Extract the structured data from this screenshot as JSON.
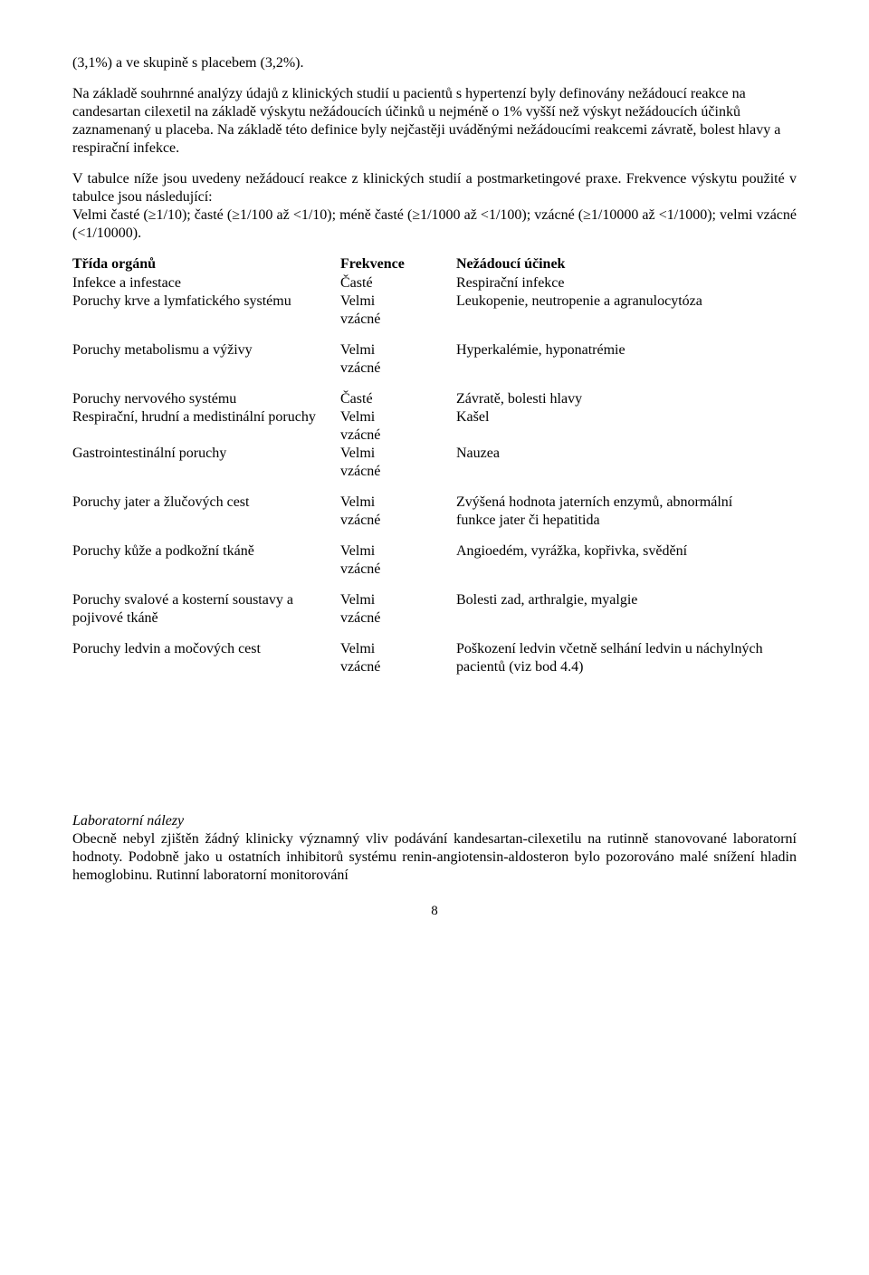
{
  "intro_fragment": "(3,1%) a ve skupině s placebem (3,2%).",
  "para1": "Na základě souhrnné analýzy údajů z klinických studií u pacientů s hypertenzí byly definovány nežádoucí reakce na candesartan cilexetil na základě výskytu nežádoucích účinků u nejméně o 1% vyšší než výskyt nežádoucích účinků zaznamenaný u placeba. Na základě této definice byly nejčastěji uváděnými nežádoucími reakcemi závratě, bolest hlavy a respirační infekce.",
  "para2": "V tabulce níže jsou uvedeny nežádoucí reakce z klinických studií a postmarketingové praxe. Frekvence výskytu použité v tabulce jsou následující:",
  "para2b": "Velmi časté (≥1/10); časté (≥1/100 až <1/10); méně časté (≥1/1000 až <1/100); vzácné (≥1/10000 až <1/1000); velmi vzácné (<1/10000).",
  "table": {
    "header": {
      "c1": "Třída orgánů",
      "c2": "Frekvence",
      "c3": "Nežádoucí účinek"
    },
    "rows": [
      {
        "c1": "Infekce a infestace",
        "c2": "Časté",
        "c3": "Respirační infekce",
        "gap": false
      },
      {
        "c1": "Poruchy krve a lymfatického systému",
        "c2": "Velmi vzácné",
        "c3": "Leukopenie, neutropenie a agranulocytóza",
        "gap": false
      },
      {
        "c1": "Poruchy metabolismu a výživy",
        "c2": "Velmi vzácné",
        "c3": "Hyperkalémie, hyponatrémie",
        "gap": true
      },
      {
        "c1": "Poruchy nervového systému",
        "c2": "Časté",
        "c3": "Závratě, bolesti hlavy",
        "gap": true
      },
      {
        "c1": "Respirační, hrudní a medistinální poruchy",
        "c2": "Velmi vzácné",
        "c3": "Kašel",
        "gap": false
      },
      {
        "c1": "Gastrointestinální poruchy",
        "c2": "Velmi vzácné",
        "c3": "Nauzea",
        "gap": false
      },
      {
        "c1": "Poruchy jater a žlučových cest",
        "c2": "Velmi vzácné",
        "c3": "Zvýšená hodnota jaterních enzymů, abnormální\nfunkce jater či hepatitida",
        "gap": true
      },
      {
        "c1": "Poruchy kůže a podkožní tkáně",
        "c2": "Velmi vzácné",
        "c3": "Angioedém, vyrážka, kopřivka, svědění",
        "gap": true
      },
      {
        "c1": "Poruchy svalové a kosterní soustavy a pojivové tkáně",
        "c2": "Velmi vzácné",
        "c3": "Bolesti zad, arthralgie, myalgie",
        "gap": true
      },
      {
        "c1": "Poruchy ledvin a močových cest",
        "c2": "Velmi vzácné",
        "c3": "Poškození ledvin včetně selhání ledvin u náchylných pacientů (viz bod 4.4)",
        "gap": true
      }
    ]
  },
  "lab_heading": "Laboratorní nálezy",
  "lab_para": "Obecně nebyl zjištěn žádný klinicky významný vliv podávání kandesartan-cilexetilu na rutinně stanovované laboratorní hodnoty. Podobně jako u ostatních inhibitorů systému renin-angiotensin-aldosteron bylo pozorováno malé snížení hladin hemoglobinu. Rutinní laboratorní monitorování",
  "page_number": "8"
}
